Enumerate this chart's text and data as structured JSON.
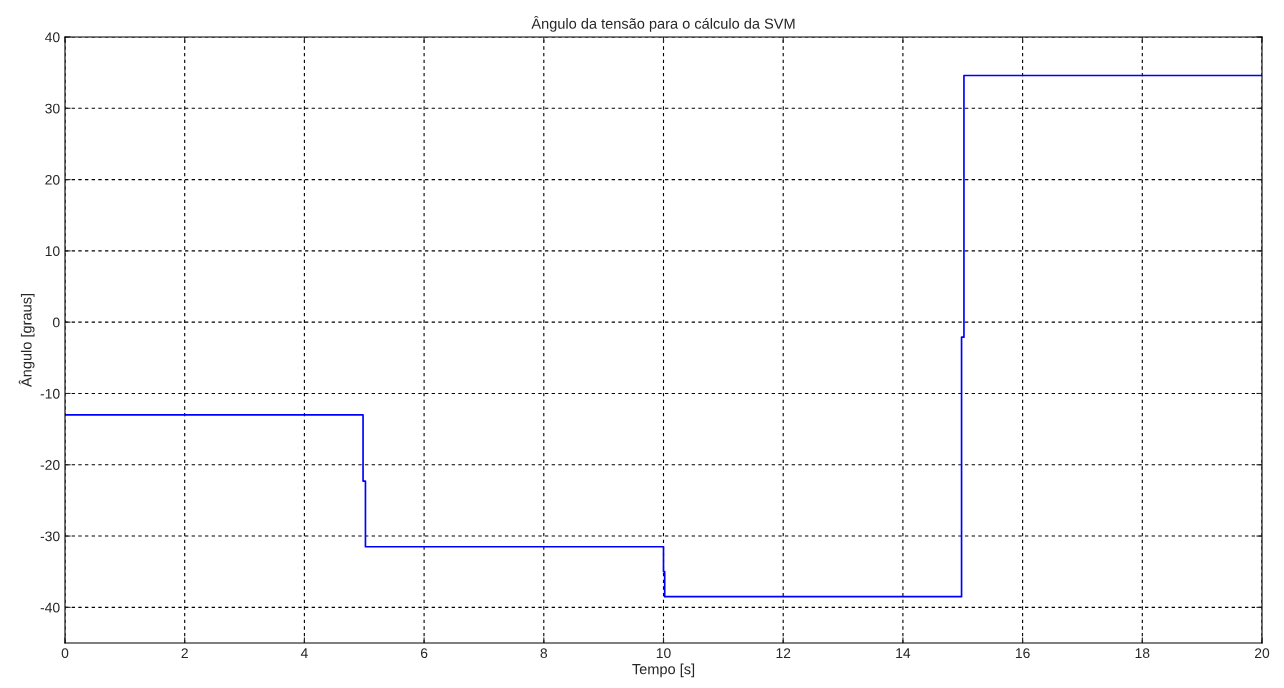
{
  "chart_data": {
    "type": "line",
    "title": "Ângulo da tensão para o cálculo da SVM",
    "xlabel": "Tempo [s]",
    "ylabel": "Ângulo [graus]",
    "x": [
      0,
      4.98,
      4.98,
      5.02,
      5.02,
      10.0,
      10.0,
      10.02,
      10.02,
      14.98,
      14.98,
      15.02,
      15.02,
      20
    ],
    "series": [
      {
        "color": "#0000ff",
        "values": [
          -13,
          -13,
          -22.3,
          -22.3,
          -31.5,
          -31.5,
          -35,
          -35,
          -38.5,
          -38.5,
          -2.1,
          -2.1,
          34.6,
          34.6
        ]
      }
    ],
    "xlim": [
      0,
      20
    ],
    "ylim": [
      -45,
      40
    ],
    "xticks": [
      0,
      2,
      4,
      6,
      8,
      10,
      12,
      14,
      16,
      18,
      20
    ],
    "yticks": [
      -40,
      -30,
      -20,
      -10,
      0,
      10,
      20,
      30,
      40
    ],
    "grid": true,
    "line_style": "solid",
    "marker": "none"
  }
}
